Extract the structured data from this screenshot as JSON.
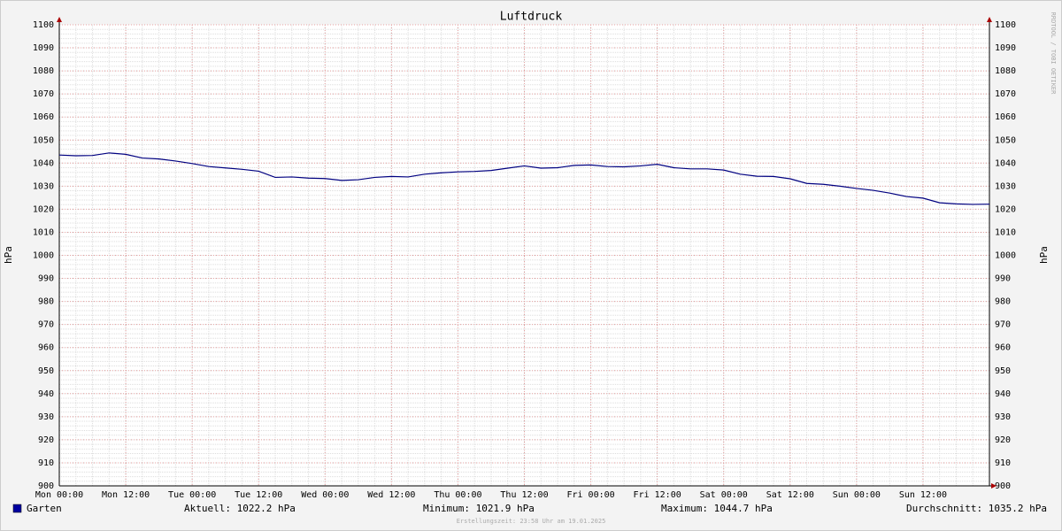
{
  "chart_data": {
    "type": "line",
    "title": "Luftdruck",
    "y_label": "hPa",
    "y2_label": "hPa",
    "watermark": "RRDTOOL / TOBI OETIKER",
    "footer": "Erstellungszeit: 23:58 Uhr am 19.01.2025",
    "x": [
      0,
      3,
      6,
      9,
      12,
      15,
      18,
      21,
      24,
      27,
      30,
      33,
      36,
      39,
      42,
      45,
      48,
      51,
      54,
      57,
      60,
      63,
      66,
      69,
      72,
      75,
      78,
      81,
      84,
      87,
      90,
      93,
      96,
      99,
      102,
      105,
      108,
      111,
      114,
      117,
      120,
      123,
      126,
      129,
      132,
      135,
      138,
      141,
      144,
      147,
      150,
      153,
      156,
      159,
      162,
      165,
      168
    ],
    "xlim": [
      0,
      168
    ],
    "xticks": [
      {
        "value": 0,
        "label": "Mon 00:00"
      },
      {
        "value": 12,
        "label": "Mon 12:00"
      },
      {
        "value": 24,
        "label": "Tue 00:00"
      },
      {
        "value": 36,
        "label": "Tue 12:00"
      },
      {
        "value": 48,
        "label": "Wed 00:00"
      },
      {
        "value": 60,
        "label": "Wed 12:00"
      },
      {
        "value": 72,
        "label": "Thu 00:00"
      },
      {
        "value": 84,
        "label": "Thu 12:00"
      },
      {
        "value": 96,
        "label": "Fri 00:00"
      },
      {
        "value": 108,
        "label": "Fri 12:00"
      },
      {
        "value": 120,
        "label": "Sat 00:00"
      },
      {
        "value": 132,
        "label": "Sat 12:00"
      },
      {
        "value": 144,
        "label": "Sun 00:00"
      },
      {
        "value": 156,
        "label": "Sun 12:00"
      }
    ],
    "ylim": [
      900,
      1100
    ],
    "yticks": [
      900,
      910,
      920,
      930,
      940,
      950,
      960,
      970,
      980,
      990,
      1000,
      1010,
      1020,
      1030,
      1040,
      1050,
      1060,
      1070,
      1080,
      1090,
      1100
    ],
    "grid": true,
    "series": [
      {
        "name": "Garten",
        "color": "#000080",
        "legend_color": "#0000a0",
        "values": [
          1043.5,
          1043.2,
          1043.3,
          1044.4,
          1043.8,
          1042.2,
          1041.8,
          1040.9,
          1039.8,
          1038.5,
          1037.9,
          1037.3,
          1036.5,
          1033.8,
          1034,
          1033.5,
          1033.3,
          1032.5,
          1032.8,
          1033.8,
          1034.2,
          1034,
          1035.2,
          1035.8,
          1036.2,
          1036.4,
          1036.8,
          1037.8,
          1038.8,
          1037.8,
          1038,
          1039,
          1039.2,
          1038.5,
          1038.4,
          1038.8,
          1039.5,
          1038,
          1037.5,
          1037.5,
          1037,
          1035.2,
          1034.3,
          1034.2,
          1033.2,
          1031.2,
          1030.8,
          1030,
          1029,
          1028.2,
          1027,
          1025.5,
          1024.8,
          1022.8,
          1022.3,
          1022.1,
          1022.2
        ]
      }
    ],
    "stats": [
      "Aktuell: 1022.2 hPa",
      "Minimum: 1021.9 hPa",
      "Maximum: 1044.7 hPa",
      "Durchschnitt: 1035.2 hPa"
    ]
  }
}
